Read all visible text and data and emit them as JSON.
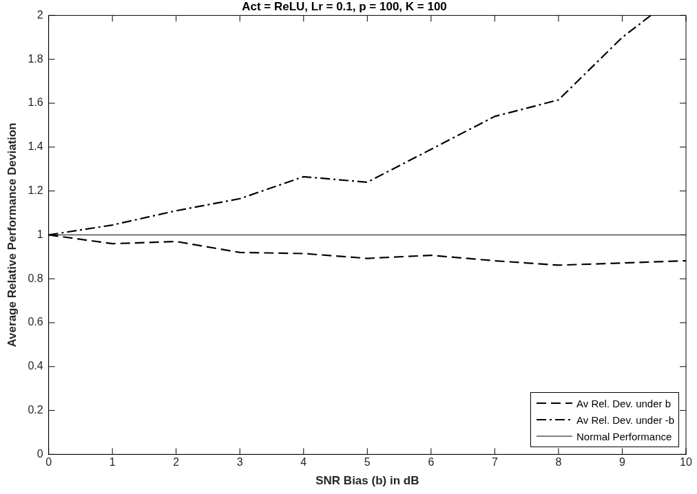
{
  "chart_data": {
    "type": "line",
    "title": "Act = ReLU, Lr = 0.1, p = 100, K = 100",
    "xlabel": "SNR Bias (b) in dB",
    "ylabel": "Average Relative Performance Deviation",
    "x": [
      0,
      1,
      2,
      3,
      4,
      5,
      6,
      7,
      8,
      9,
      10
    ],
    "series": [
      {
        "name": "Av Rel. Dev. under b",
        "color": "#000000",
        "line_style": "dashed",
        "values": [
          1,
          0.96,
          0.97,
          0.92,
          0.915,
          0.893,
          0.907,
          0.882,
          0.862,
          0.872,
          0.882
        ]
      },
      {
        "name": "Av Rel. Dev. under -b",
        "color": "#000000",
        "line_style": "dashdot",
        "x": [
          0,
          1,
          2,
          3,
          4,
          5,
          6,
          7,
          8,
          9,
          9.45
        ],
        "values": [
          1,
          1.045,
          1.11,
          1.165,
          1.265,
          1.24,
          1.39,
          1.54,
          1.615,
          1.9,
          2
        ]
      },
      {
        "name": "Normal Performance",
        "color": "#000000",
        "line_style": "solid",
        "x": [
          0,
          10
        ],
        "values": [
          1,
          1
        ]
      }
    ],
    "xlim": [
      0,
      10
    ],
    "xticks": [
      0,
      1,
      2,
      3,
      4,
      5,
      6,
      7,
      8,
      9,
      10
    ],
    "ylim": [
      0,
      2
    ],
    "yticks": [
      0,
      0.2,
      0.4,
      0.6,
      0.8,
      1,
      1.2,
      1.4,
      1.6,
      1.8,
      2
    ],
    "grid": false,
    "legend": "bottom right",
    "marker": "none"
  }
}
